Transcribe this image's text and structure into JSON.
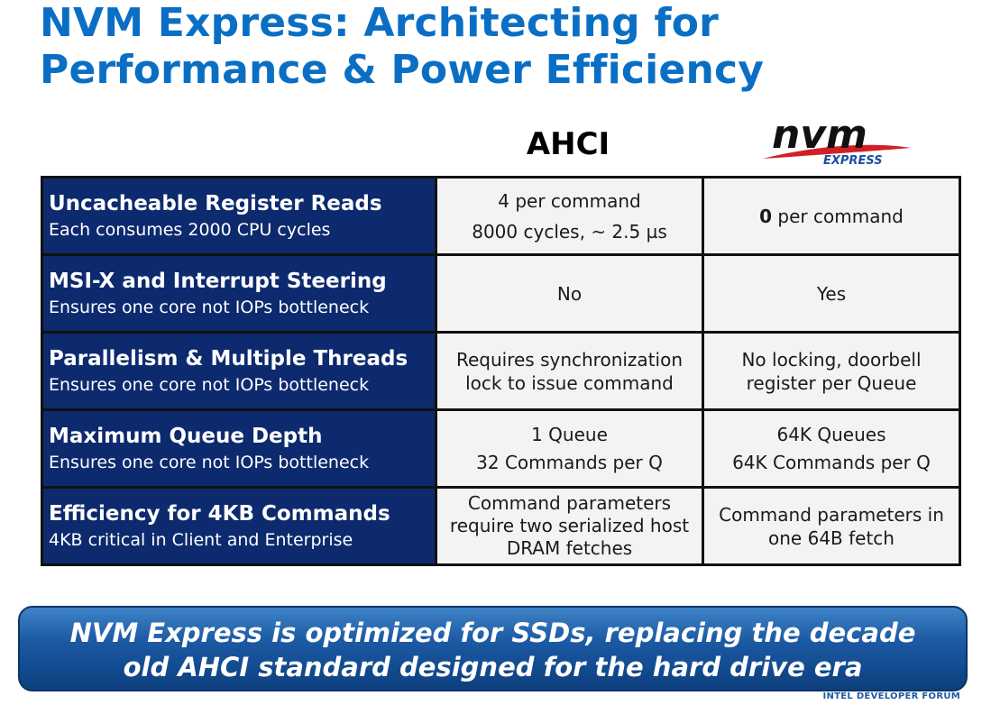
{
  "title": {
    "line1": "NVM Express: Architecting for",
    "line2": "Performance & Power Efficiency"
  },
  "columns": {
    "ahci": "AHCI",
    "nvme_logo_text": "nvm",
    "nvme_logo_sub": "EXPRESS"
  },
  "rows": [
    {
      "feature": "Uncacheable Register Reads",
      "detail": "Each consumes 2000 CPU cycles",
      "ahci": [
        "4 per command",
        "8000 cycles, ~ 2.5 µs"
      ],
      "nvme_bold": "0",
      "nvme_rest": " per command"
    },
    {
      "feature": "MSI-X and Interrupt Steering",
      "detail": "Ensures one core not IOPs bottleneck",
      "ahci": [
        "No"
      ],
      "nvme": [
        "Yes"
      ]
    },
    {
      "feature": "Parallelism & Multiple Threads",
      "detail": "Ensures one core not IOPs bottleneck",
      "ahci": [
        "Requires synchronization",
        "lock to issue command"
      ],
      "nvme": [
        "No locking, doorbell",
        "register per Queue"
      ]
    },
    {
      "feature": "Maximum Queue Depth",
      "detail": "Ensures one core not IOPs bottleneck",
      "ahci": [
        "1 Queue",
        "32 Commands per Q"
      ],
      "nvme": [
        "64K Queues",
        "64K Commands per Q"
      ]
    },
    {
      "feature": "Efficiency for 4KB Commands",
      "detail": "4KB critical in Client and Enterprise",
      "ahci": [
        "Command parameters",
        "require two serialized host",
        "DRAM fetches"
      ],
      "nvme": [
        "Command parameters in",
        "one 64B fetch"
      ]
    }
  ],
  "banner": {
    "line1": "NVM Express is optimized for SSDs, replacing the decade",
    "line2": "old AHCI standard designed for the hard drive era"
  },
  "footer": "INTEL DEVELOPER FORUM",
  "colors": {
    "title": "#0a6fc4",
    "feature_bg": "#0d2a6e",
    "value_bg": "#f3f3f3",
    "banner": "#1c5aa4",
    "logo_red": "#d21f26"
  }
}
